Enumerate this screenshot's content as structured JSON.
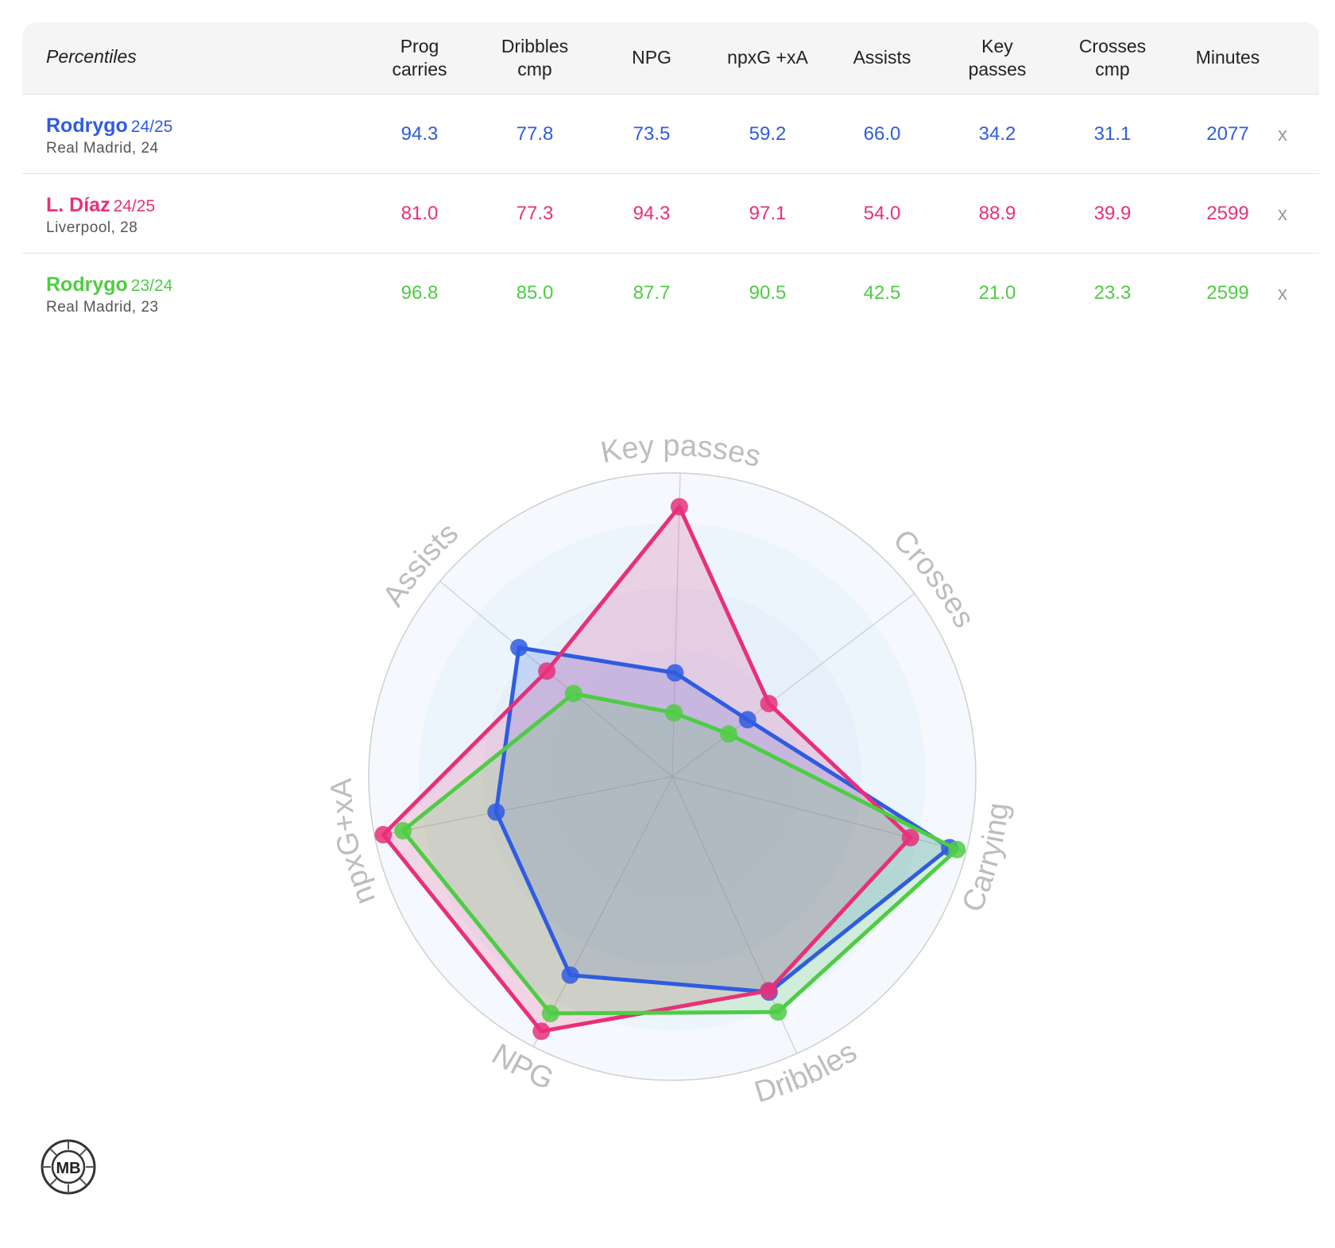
{
  "table": {
    "corner_label": "Percentiles",
    "columns": [
      [
        "Prog",
        "carries"
      ],
      [
        "Dribbles",
        "cmp"
      ],
      [
        "NPG"
      ],
      [
        "npxG +xA"
      ],
      [
        "Assists"
      ],
      [
        "Key",
        "passes"
      ],
      [
        "Crosses",
        "cmp"
      ],
      [
        "Minutes"
      ]
    ],
    "rows": [
      {
        "name": "Rodrygo",
        "season": "24/25",
        "team": "Real Madrid, 24",
        "color": "#2f5ce0",
        "values": [
          "94.3",
          "77.8",
          "73.5",
          "59.2",
          "66.0",
          "34.2",
          "31.1",
          "2077"
        ],
        "remove": "x"
      },
      {
        "name": "L. Díaz",
        "season": "24/25",
        "team": "Liverpool, 28",
        "color": "#e8307a",
        "values": [
          "81.0",
          "77.3",
          "94.3",
          "97.1",
          "54.0",
          "88.9",
          "39.9",
          "2599"
        ],
        "remove": "x"
      },
      {
        "name": "Rodrygo",
        "season": "23/24",
        "team": "Real Madrid, 23",
        "color": "#4fcc45",
        "values": [
          "96.8",
          "85.0",
          "87.7",
          "90.5",
          "42.5",
          "21.0",
          "23.3",
          "2599"
        ],
        "remove": "x"
      }
    ]
  },
  "chart_data": {
    "type": "radar",
    "axes": [
      "Key passes",
      "Crosses",
      "Carrying",
      "Dribbles",
      "NPG",
      "npxG+xA",
      "Assists"
    ],
    "range": [
      0,
      100
    ],
    "grid": true,
    "series": [
      {
        "name": "Rodrygo 24/25",
        "color": "#2f5ce0",
        "values": [
          34.2,
          31.1,
          94.3,
          77.8,
          73.5,
          59.2,
          66.0
        ]
      },
      {
        "name": "L. Díaz 24/25",
        "color": "#e8307a",
        "values": [
          88.9,
          39.9,
          81.0,
          77.3,
          94.3,
          97.1,
          54.0
        ]
      },
      {
        "name": "Rodrygo 23/24",
        "color": "#4fcc45",
        "values": [
          21.0,
          23.3,
          96.8,
          85.0,
          87.7,
          90.5,
          42.5
        ]
      }
    ]
  },
  "logo": {
    "text": "MB"
  }
}
